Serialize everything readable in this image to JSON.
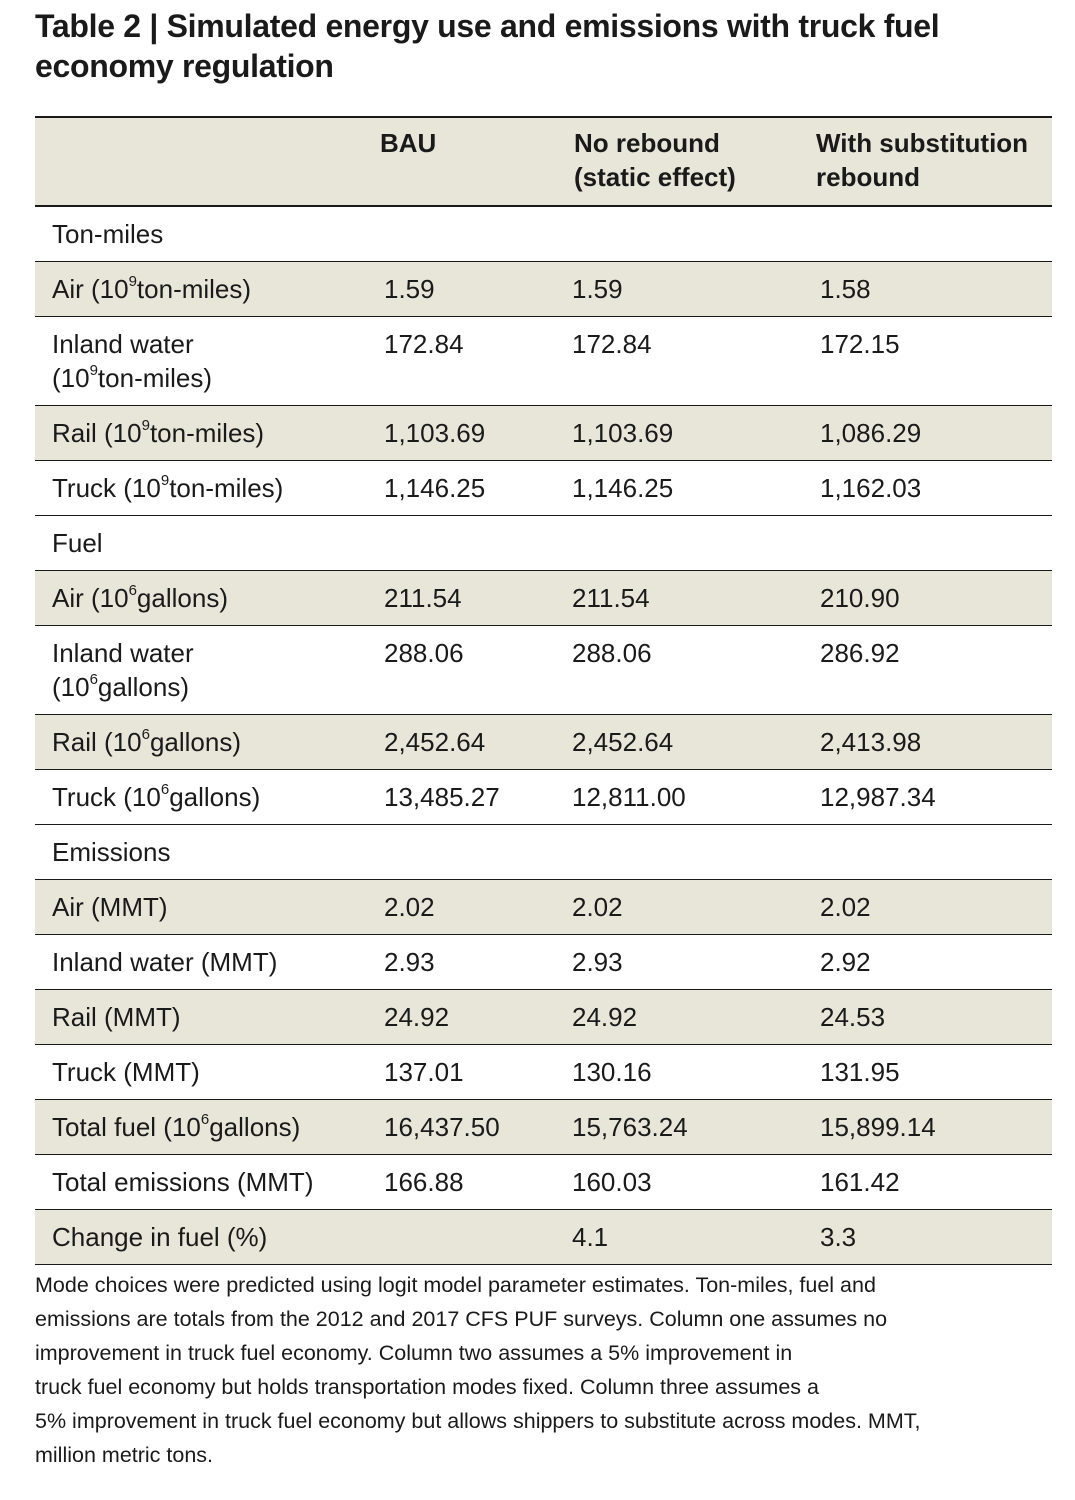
{
  "title": "Table 2 | Simulated energy use and emissions with truck fuel economy regulation",
  "headers": {
    "col1": "BAU",
    "col2_line1": "No rebound",
    "col2_line2": "(static effect)",
    "col3_line1": "With substitution",
    "col3_line2": "rebound"
  },
  "rows": [
    {
      "type": "section",
      "label": "Ton-miles"
    },
    {
      "type": "data",
      "label": "Air (10",
      "exp": "9",
      "label_rest": "ton-miles)",
      "values": [
        "1.59",
        "1.59",
        "1.58"
      ]
    },
    {
      "type": "data",
      "label": "Inland water",
      "label2_pre": "(10",
      "exp": "9",
      "label2_rest": "ton-miles)",
      "values": [
        "172.84",
        "172.84",
        "172.15"
      ]
    },
    {
      "type": "data",
      "label": "Rail (10",
      "exp": "9",
      "label_rest": "ton-miles)",
      "values": [
        "1,103.69",
        "1,103.69",
        "1,086.29"
      ]
    },
    {
      "type": "data",
      "label": "Truck (10",
      "exp": "9",
      "label_rest": "ton-miles)",
      "values": [
        "1,146.25",
        "1,146.25",
        "1,162.03"
      ]
    },
    {
      "type": "section",
      "label": "Fuel"
    },
    {
      "type": "data",
      "label": "Air (10",
      "exp": "6",
      "label_rest": "gallons)",
      "values": [
        "211.54",
        "211.54",
        "210.90"
      ]
    },
    {
      "type": "data",
      "label": "Inland water",
      "label2_pre": "(10",
      "exp": "6",
      "label2_rest": "gallons)",
      "values": [
        "288.06",
        "288.06",
        "286.92"
      ]
    },
    {
      "type": "data",
      "label": "Rail (10",
      "exp": "6",
      "label_rest": "gallons)",
      "values": [
        "2,452.64",
        "2,452.64",
        "2,413.98"
      ]
    },
    {
      "type": "data",
      "label": "Truck (10",
      "exp": "6",
      "label_rest": "gallons)",
      "values": [
        "13,485.27",
        "12,811.00",
        "12,987.34"
      ]
    },
    {
      "type": "section",
      "label": "Emissions"
    },
    {
      "type": "data",
      "label": "Air (MMT)",
      "values": [
        "2.02",
        "2.02",
        "2.02"
      ]
    },
    {
      "type": "data",
      "label": "Inland water (MMT)",
      "values": [
        "2.93",
        "2.93",
        "2.92"
      ]
    },
    {
      "type": "data",
      "label": "Rail (MMT)",
      "values": [
        "24.92",
        "24.92",
        "24.53"
      ]
    },
    {
      "type": "data",
      "label": "Truck (MMT)",
      "values": [
        "137.01",
        "130.16",
        "131.95"
      ]
    },
    {
      "type": "data",
      "label": "Total fuel (10",
      "exp": "6",
      "label_rest": "gallons)",
      "values": [
        "16,437.50",
        "15,763.24",
        "15,899.14"
      ]
    },
    {
      "type": "data",
      "label": "Total emissions (MMT)",
      "values": [
        "166.88",
        "160.03",
        "161.42"
      ]
    },
    {
      "type": "data",
      "label": "Change in fuel (%)",
      "values": [
        "",
        "4.1",
        "3.3"
      ]
    }
  ],
  "note_lines": [
    "Mode choices were predicted using logit model parameter estimates. Ton-miles, fuel and",
    "emissions are totals from the 2012 and 2017 CFS PUF surveys. Column one assumes no",
    "improvement in truck fuel economy. Column two assumes a 5% improvement in",
    "truck fuel economy but holds transportation modes fixed. Column three assumes a",
    "5% improvement in truck fuel economy but allows shippers to substitute across modes. MMT,",
    "million metric tons."
  ],
  "colors": {
    "shade": "#e8e6d9",
    "rule": "#1a1a1a"
  }
}
